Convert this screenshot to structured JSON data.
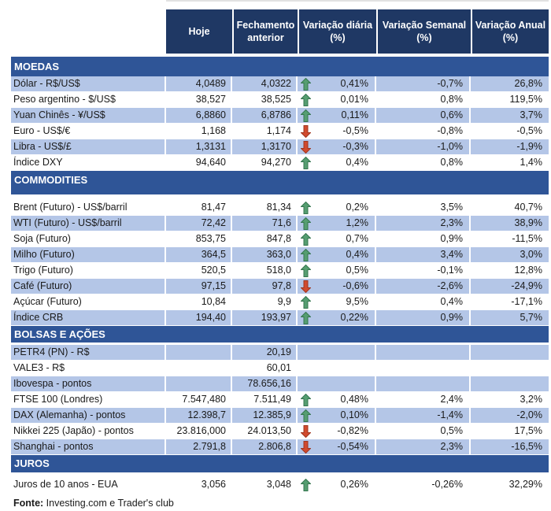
{
  "header": {
    "columns": [
      "Hoje",
      "Fechamento anterior",
      "Variação diária (%)",
      "Variação Semanal (%)",
      "Variação Anual (%)"
    ]
  },
  "sections": [
    {
      "title": "MOEDAS",
      "rows": [
        {
          "label": "Dólar - R$/US$",
          "hoje": "4,0489",
          "fechamento": "4,0322",
          "arrow": "up",
          "var_diaria": "0,41%",
          "var_semanal": "-0,7%",
          "var_anual": "26,8%",
          "shaded": true
        },
        {
          "label": "Peso argentino - $/US$",
          "hoje": "38,527",
          "fechamento": "38,525",
          "arrow": "up",
          "var_diaria": "0,01%",
          "var_semanal": "0,8%",
          "var_anual": "119,5%",
          "shaded": false
        },
        {
          "label": "Yuan Chinês - ¥/US$",
          "hoje": "6,8860",
          "fechamento": "6,8786",
          "arrow": "up",
          "var_diaria": "0,11%",
          "var_semanal": "0,6%",
          "var_anual": "3,7%",
          "shaded": true
        },
        {
          "label": "Euro - US$/€",
          "hoje": "1,168",
          "fechamento": "1,174",
          "arrow": "down",
          "var_diaria": "-0,5%",
          "var_semanal": "-0,8%",
          "var_anual": "-0,5%",
          "shaded": false
        },
        {
          "label": "Libra - US$/£",
          "hoje": "1,3131",
          "fechamento": "1,3170",
          "arrow": "down",
          "var_diaria": "-0,3%",
          "var_semanal": "-1,0%",
          "var_anual": "-1,9%",
          "shaded": true
        },
        {
          "label": "Índice DXY",
          "hoje": "94,640",
          "fechamento": "94,270",
          "arrow": "up",
          "var_diaria": "0,4%",
          "var_semanal": "0,8%",
          "var_anual": "1,4%",
          "shaded": false
        }
      ]
    },
    {
      "title": "COMMODITIES",
      "rows": [
        {
          "label": "Brent (Futuro) - US$/barril",
          "hoje": "81,47",
          "fechamento": "81,34",
          "arrow": "up",
          "var_diaria": "0,2%",
          "var_semanal": "3,5%",
          "var_anual": "40,7%",
          "shaded": false
        },
        {
          "label": "WTI (Futuro) - US$/barril",
          "hoje": "72,42",
          "fechamento": "71,6",
          "arrow": "up",
          "var_diaria": "1,2%",
          "var_semanal": "2,3%",
          "var_anual": "38,9%",
          "shaded": true
        },
        {
          "label": "Soja (Futuro)",
          "hoje": "853,75",
          "fechamento": "847,8",
          "arrow": "up",
          "var_diaria": "0,7%",
          "var_semanal": "0,9%",
          "var_anual": "-11,5%",
          "shaded": false
        },
        {
          "label": "Milho (Futuro)",
          "hoje": "364,5",
          "fechamento": "363,0",
          "arrow": "up",
          "var_diaria": "0,4%",
          "var_semanal": "3,4%",
          "var_anual": "3,0%",
          "shaded": true
        },
        {
          "label": "Trigo (Futuro)",
          "hoje": "520,5",
          "fechamento": "518,0",
          "arrow": "up",
          "var_diaria": "0,5%",
          "var_semanal": "-0,1%",
          "var_anual": "12,8%",
          "shaded": false
        },
        {
          "label": "Café (Futuro)",
          "hoje": "97,15",
          "fechamento": "97,8",
          "arrow": "down",
          "var_diaria": "-0,6%",
          "var_semanal": "-2,6%",
          "var_anual": "-24,9%",
          "shaded": true
        },
        {
          "label": "Açúcar (Futuro)",
          "hoje": "10,84",
          "fechamento": "9,9",
          "arrow": "up",
          "var_diaria": "9,5%",
          "var_semanal": "0,4%",
          "var_anual": "-17,1%",
          "shaded": false
        },
        {
          "label": "Índice CRB",
          "hoje": "194,40",
          "fechamento": "193,97",
          "arrow": "up",
          "var_diaria": "0,22%",
          "var_semanal": "0,9%",
          "var_anual": "5,7%",
          "shaded": true
        }
      ]
    },
    {
      "title": "BOLSAS E AÇÕES",
      "rows": [
        {
          "label": "PETR4 (PN) - R$",
          "hoje": "",
          "fechamento": "20,19",
          "arrow": "none",
          "var_diaria": "",
          "var_semanal": "",
          "var_anual": "",
          "shaded": true
        },
        {
          "label": "VALE3 - R$",
          "hoje": "",
          "fechamento": "60,01",
          "arrow": "none",
          "var_diaria": "",
          "var_semanal": "",
          "var_anual": "",
          "shaded": false
        },
        {
          "label": "Ibovespa - pontos",
          "hoje": "",
          "fechamento": "78.656,16",
          "arrow": "none",
          "var_diaria": "",
          "var_semanal": "",
          "var_anual": "",
          "shaded": true
        },
        {
          "label": "FTSE 100 (Londres)",
          "hoje": "7.547,480",
          "fechamento": "7.511,49",
          "arrow": "up",
          "var_diaria": "0,48%",
          "var_semanal": "2,4%",
          "var_anual": "3,2%",
          "shaded": false
        },
        {
          "label": "DAX (Alemanha) - pontos",
          "hoje": "12.398,7",
          "fechamento": "12.385,9",
          "arrow": "up",
          "var_diaria": "0,10%",
          "var_semanal": "-1,4%",
          "var_anual": "-2,0%",
          "shaded": true
        },
        {
          "label": "Nikkei 225 (Japão) - pontos",
          "hoje": "23.816,000",
          "fechamento": "24.013,50",
          "arrow": "down",
          "var_diaria": "-0,82%",
          "var_semanal": "0,5%",
          "var_anual": "17,5%",
          "shaded": false
        },
        {
          "label": "Shanghai - pontos",
          "hoje": "2.791,8",
          "fechamento": "2.806,8",
          "arrow": "down",
          "var_diaria": "-0,54%",
          "var_semanal": "2,3%",
          "var_anual": "-16,5%",
          "shaded": true
        }
      ]
    },
    {
      "title": "JUROS",
      "rows": [
        {
          "label": "Juros de 10 anos - EUA",
          "hoje": "3,056",
          "fechamento": "3,048",
          "arrow": "up",
          "var_diaria": "0,26%",
          "var_semanal": "-0,26%",
          "var_anual": "32,29%",
          "shaded": false
        }
      ]
    }
  ],
  "footer": {
    "label": "Fonte:",
    "text": " Investing.com e Trader's club"
  },
  "icons": {
    "up": "up-arrow-icon",
    "down": "down-arrow-icon"
  },
  "colors": {
    "header_bg": "#1F3864",
    "section_bg": "#2F5597",
    "row_shade": "#B4C6E7",
    "up_arrow_fill": "#569E71",
    "up_arrow_border": "#35764F",
    "down_arrow_fill": "#D14A2E",
    "down_arrow_border": "#A0361F",
    "text": "#1A1A1A"
  }
}
